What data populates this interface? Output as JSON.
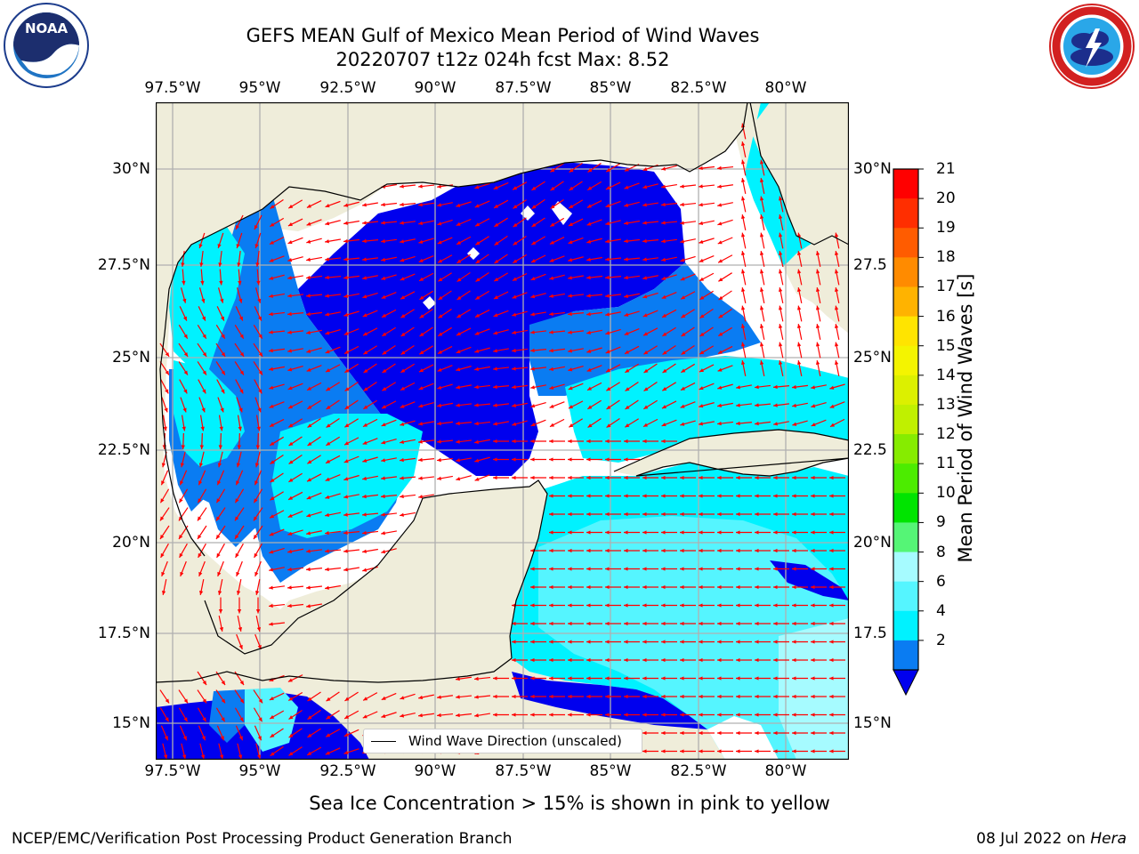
{
  "title": {
    "line1": "GEFS MEAN Gulf of Mexico Mean Period of Wind Waves",
    "line2": "20220707 t12z 024h fcst   Max: 8.52"
  },
  "logos": {
    "noaa": {
      "text": "NOAA",
      "ring_text": "NATIONAL OCEANIC AND ATMOSPHERIC ADMINISTRATION · U.S. DEPARTMENT OF COMMERCE"
    },
    "nws": {
      "ring_text": "NATIONAL WEATHER SERVICE"
    }
  },
  "map": {
    "lon_labels": [
      "97.5°W",
      "95°W",
      "92.5°W",
      "90°W",
      "87.5°W",
      "85°W",
      "82.5°W",
      "80°W"
    ],
    "lat_labels_left": [
      "30°N",
      "27.5°N",
      "25°N",
      "22.5°N",
      "20°N",
      "17.5°N",
      "15°N"
    ],
    "lat_labels_right": [
      "30°N",
      "27.5",
      "25°N",
      "22.5",
      "20°N",
      "17.5",
      "15°N"
    ],
    "legend_label": "Wind Wave Direction (unscaled)",
    "colors": {
      "land": "#efedda",
      "c2": "#0000ee",
      "c4": "#0a7cf2",
      "c6": "#00f2ff",
      "c8": "#55f5ff",
      "c9": "#a6fbff",
      "arrow": "#ff0000",
      "grid": "#b0b0b0"
    }
  },
  "colorbar": {
    "label": "Mean Period of Wind Waves [s]",
    "ticks": [
      "21",
      "20",
      "19",
      "18",
      "17",
      "16",
      "15",
      "14",
      "13",
      "12",
      "11",
      "10",
      "9",
      "8",
      "6",
      "4",
      "2"
    ],
    "colors": [
      "#ff0000",
      "#ff2e00",
      "#ff5c00",
      "#ff8b00",
      "#ffb300",
      "#ffe400",
      "#f4f400",
      "#dcf000",
      "#c0f000",
      "#86ec00",
      "#4cec00",
      "#00e400",
      "#55f576",
      "#a6fbff",
      "#55f5ff",
      "#00f2ff",
      "#0a7cf2"
    ],
    "extend_color": "#0000ee"
  },
  "notes": {
    "ice": "Sea Ice Concentration > 15% is shown in pink to yellow",
    "footer_left": "NCEP/EMC/Verification Post Processing Product Generation Branch",
    "footer_date": "08 Jul 2022 on ",
    "footer_machine": "Hera"
  }
}
